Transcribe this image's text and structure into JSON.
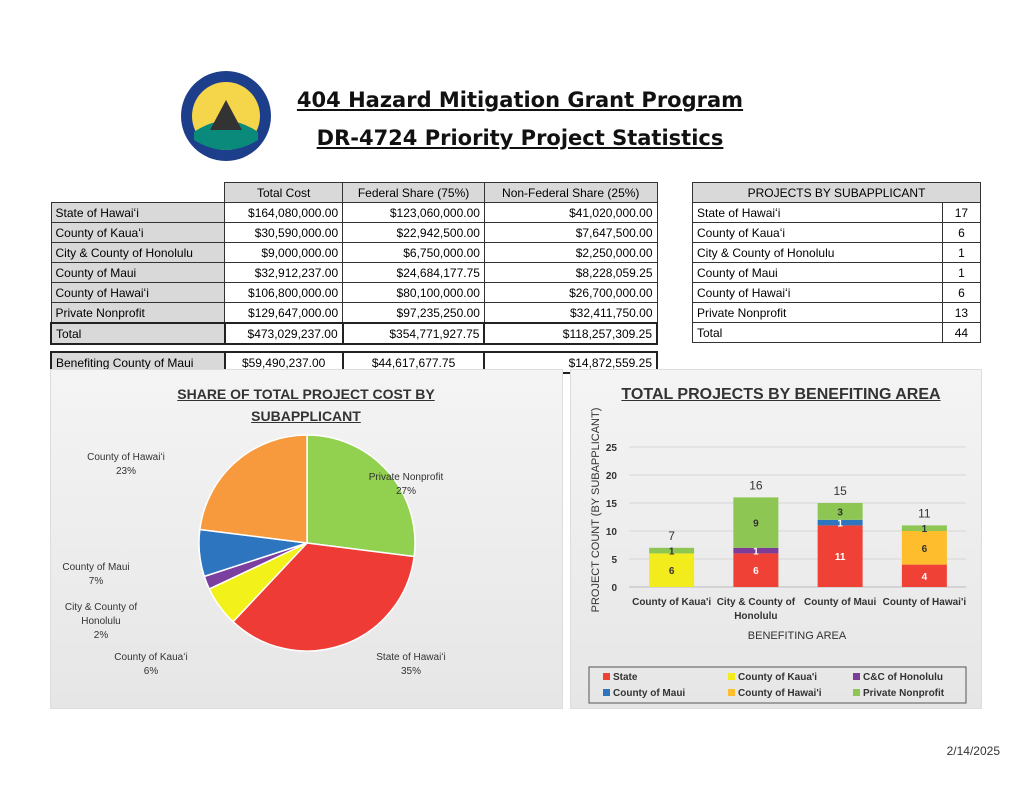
{
  "header": {
    "title_line1": "404 Hazard Mitigation Grant Program",
    "title_line2": "DR-4724 Priority Project Statistics"
  },
  "cost_table": {
    "columns": [
      "Total Cost",
      "Federal Share (75%)",
      "Non-Federal Share (25%)"
    ],
    "rows": [
      {
        "label": "State of Hawaiʻi",
        "values": [
          "$164,080,000.00",
          "$123,060,000.00",
          "$41,020,000.00"
        ]
      },
      {
        "label": "County of Kauaʻi",
        "values": [
          "$30,590,000.00",
          "$22,942,500.00",
          "$7,647,500.00"
        ]
      },
      {
        "label": "City & County of Honolulu",
        "values": [
          "$9,000,000.00",
          "$6,750,000.00",
          "$2,250,000.00"
        ]
      },
      {
        "label": "County of Maui",
        "values": [
          "$32,912,237.00",
          "$24,684,177.75",
          "$8,228,059.25"
        ]
      },
      {
        "label": "County of Hawaiʻi",
        "values": [
          "$106,800,000.00",
          "$80,100,000.00",
          "$26,700,000.00"
        ]
      },
      {
        "label": "Private Nonprofit",
        "values": [
          "$129,647,000.00",
          "$97,235,250.00",
          "$32,411,750.00"
        ]
      }
    ],
    "total": {
      "label": "Total",
      "values": [
        "$473,029,237.00",
        "$354,771,927.75",
        "$118,257,309.25"
      ]
    },
    "maui": {
      "label": "Benefiting County of Maui",
      "values": [
        "$59,490,237.00",
        "$44,617,677.75",
        "$14,872,559.25"
      ]
    }
  },
  "projects_table": {
    "header": "PROJECTS BY SUBAPPLICANT",
    "rows": [
      {
        "label": "State of Hawaiʻi",
        "value": "17"
      },
      {
        "label": "County of Kauaʻi",
        "value": "6"
      },
      {
        "label": "City & County of Honolulu",
        "value": "1"
      },
      {
        "label": "County of Maui",
        "value": "1"
      },
      {
        "label": "County of Hawaiʻi",
        "value": "6"
      },
      {
        "label": "Private Nonprofit",
        "value": "13"
      },
      {
        "label": "Total",
        "value": "44"
      }
    ]
  },
  "chart_data": [
    {
      "type": "pie",
      "title": "SHARE OF TOTAL PROJECT COST BY SUBAPPLICANT",
      "slices": [
        {
          "label": "Private Nonprofit",
          "value": 27,
          "text": "27%",
          "color": "#92d050"
        },
        {
          "label": "State of Hawaiʻi",
          "value": 35,
          "text": "35%",
          "color": "#ef3b36"
        },
        {
          "label": "County of Kauaʻi",
          "value": 6,
          "text": "6%",
          "color": "#f2f21a"
        },
        {
          "label": "City & County of Honolulu",
          "value": 2,
          "text": "2%",
          "color": "#7b3fa0"
        },
        {
          "label": "County of Maui",
          "value": 7,
          "text": "7%",
          "color": "#2e75c0"
        },
        {
          "label": "County of Hawaiʻi",
          "value": 23,
          "text": "23%",
          "color": "#f79a3e"
        }
      ]
    },
    {
      "type": "bar",
      "stacked": true,
      "title": "TOTAL PROJECTS BY BENEFITING AREA",
      "xlabel": "BENEFITING AREA",
      "ylabel": "PROJECT COUNT (BY SUBAPPLICANT)",
      "ylim": [
        0,
        25
      ],
      "yticks": [
        "0",
        "5",
        "10",
        "15",
        "20",
        "25"
      ],
      "grid": true,
      "legend": "bottom",
      "categories": [
        "County of Kaua'i",
        "City & County of Honolulu",
        "County of Maui",
        "County of Hawai'i"
      ],
      "totals": [
        "7",
        "16",
        "15",
        "11"
      ],
      "series": [
        {
          "name": "State",
          "color": "#ef4136",
          "values": [
            0,
            6,
            11,
            4
          ]
        },
        {
          "name": "County of Kaua'i",
          "color": "#f2ec1c",
          "values": [
            6,
            0,
            0,
            0
          ]
        },
        {
          "name": "C&C of Honolulu",
          "color": "#7d3c98",
          "values": [
            0,
            1,
            0,
            0
          ]
        },
        {
          "name": "County of Maui",
          "color": "#2e75c0",
          "values": [
            0,
            0,
            1,
            0
          ]
        },
        {
          "name": "County of Hawai'i",
          "color": "#fdbd2c",
          "values": [
            0,
            0,
            0,
            6
          ]
        },
        {
          "name": "Private Nonprofit",
          "color": "#8dc653",
          "values": [
            1,
            9,
            3,
            1
          ]
        }
      ]
    }
  ],
  "footer": {
    "date": "2/14/2025"
  }
}
